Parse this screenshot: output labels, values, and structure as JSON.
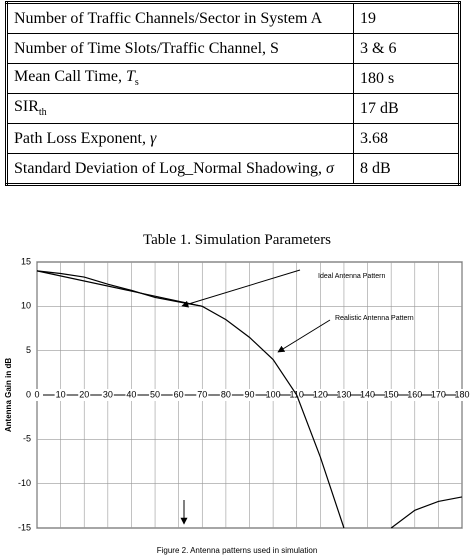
{
  "table": {
    "rows": [
      {
        "label": "Number of Traffic Channels/Sector in System A",
        "value": "19"
      },
      {
        "label": "Number of Time Slots/Traffic Channel, S",
        "value": "3 & 6"
      },
      {
        "label": "Mean Call Time, ",
        "symbol": "T",
        "subscript": "s",
        "value": "180 s"
      },
      {
        "label": "SIR",
        "subscript": "th",
        "value": "17 dB"
      },
      {
        "label": "Path Loss Exponent, ",
        "symbol": "γ",
        "value": "3.68"
      },
      {
        "label": "Standard Deviation of Log_Normal Shadowing, ",
        "symbol": "σ",
        "value": "8 dB"
      }
    ],
    "caption": "Table 1. Simulation Parameters"
  },
  "chart_data": {
    "type": "line",
    "ylabel": "Antenna Gain in dB",
    "caption": "Figure 2.  Antenna patterns used in simulation",
    "annotations": [
      "Ideal Antenna Pattern",
      "Realistic Antenna Pattern"
    ],
    "xlim": [
      0,
      180
    ],
    "xticks": [
      0,
      10,
      20,
      30,
      40,
      50,
      60,
      70,
      80,
      90,
      100,
      110,
      120,
      130,
      140,
      150,
      160,
      170,
      180
    ],
    "ylim": [
      -15,
      15
    ],
    "yticks": [
      -15,
      -10,
      -5,
      0,
      5,
      10,
      15
    ],
    "grid": true,
    "series": [
      {
        "color": "#000000",
        "x": [
          0,
          70
        ],
        "values": [
          14,
          10
        ]
      },
      {
        "color": "#000000",
        "x": [
          0,
          10,
          20,
          30,
          40,
          50,
          60,
          70,
          80,
          90,
          100,
          110,
          120,
          130,
          140,
          150,
          160,
          170,
          180
        ],
        "values": [
          14,
          13.7,
          13.3,
          12.5,
          11.8,
          11,
          10.5,
          10,
          8.5,
          6.5,
          4,
          0,
          -7,
          -15,
          null,
          -15,
          -13,
          -12,
          -11.5
        ]
      }
    ]
  }
}
